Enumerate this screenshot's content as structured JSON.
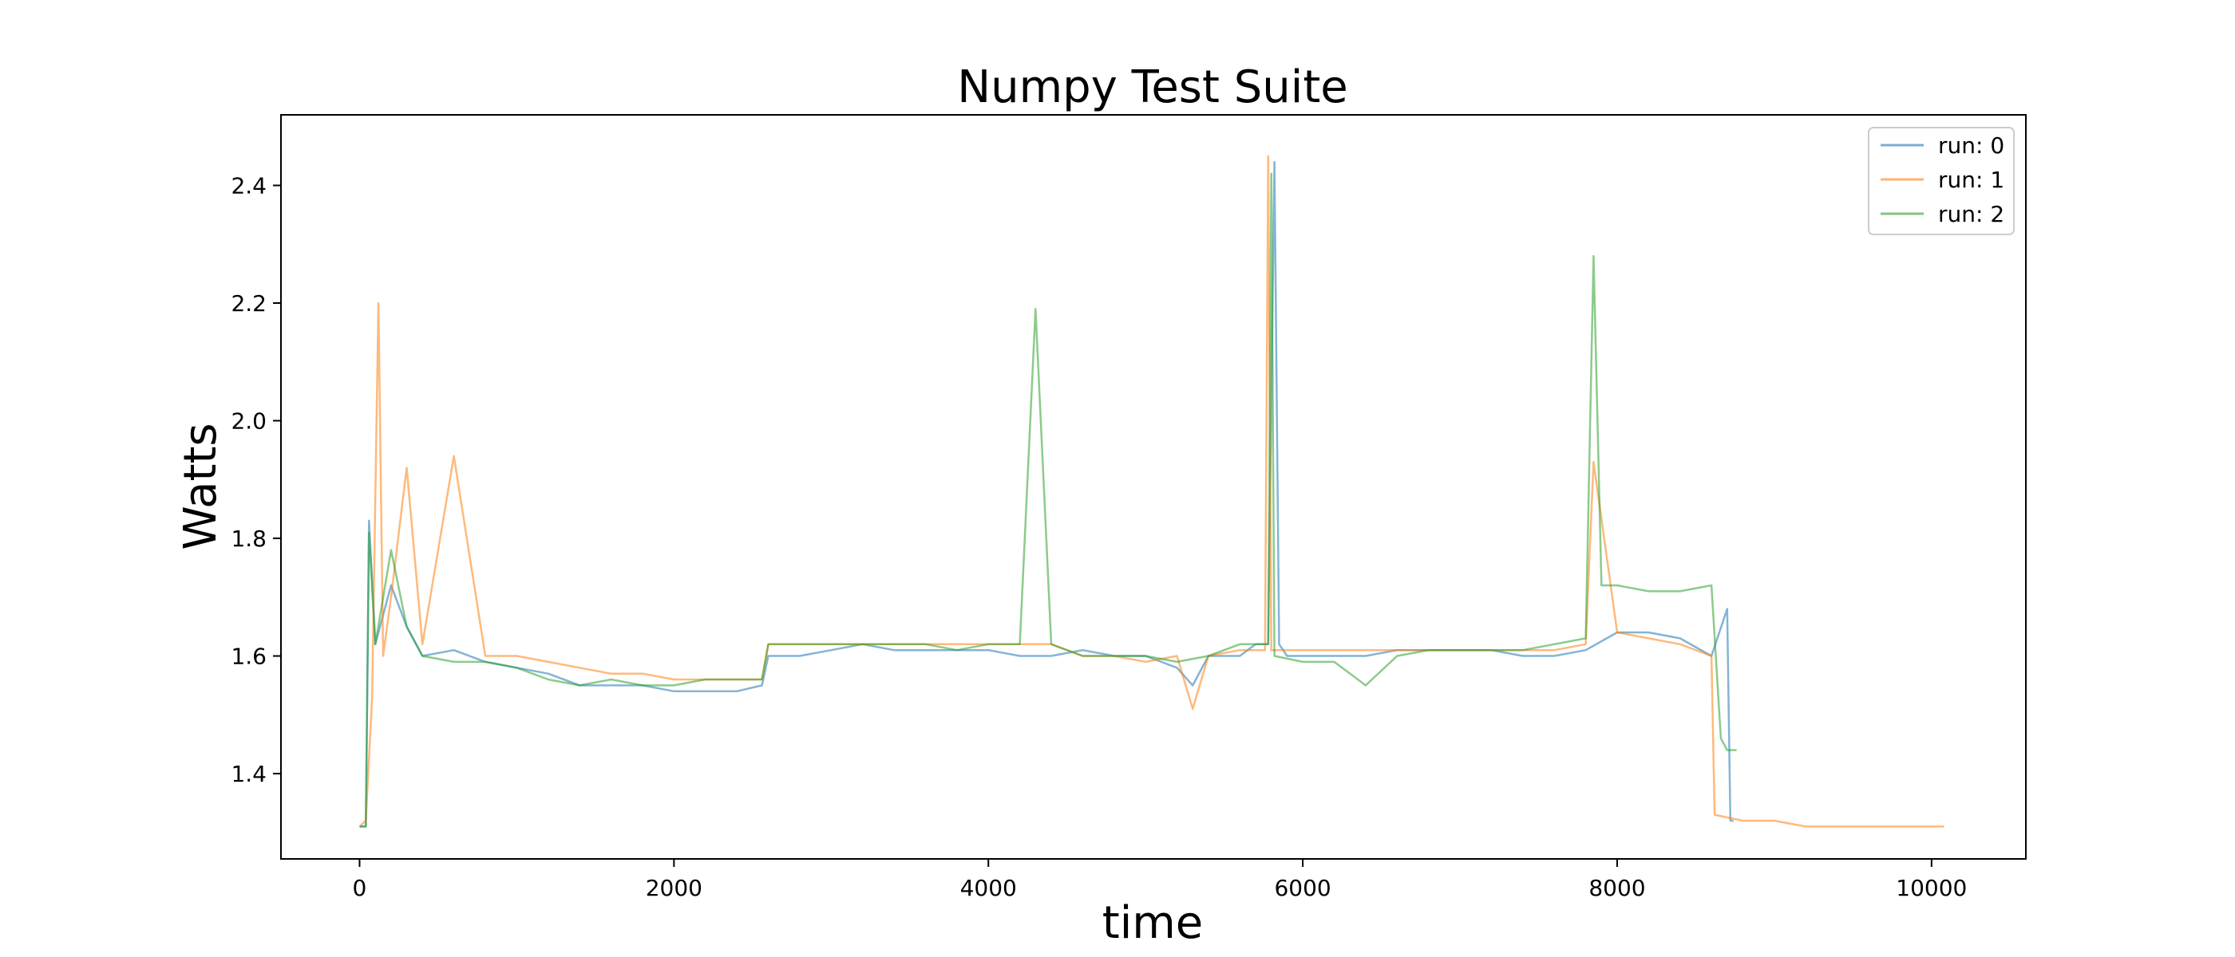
{
  "chart_data": {
    "type": "line",
    "title": "Numpy Test Suite",
    "xlabel": "time",
    "ylabel": "Watts",
    "xlim": [
      -500,
      10600
    ],
    "ylim": [
      1.255,
      2.52
    ],
    "xticks": [
      0,
      2000,
      4000,
      6000,
      8000,
      10000
    ],
    "yticks": [
      1.4,
      1.6,
      1.8,
      2.0,
      2.2,
      2.4
    ],
    "xtick_labels": [
      "0",
      "2000",
      "4000",
      "6000",
      "8000",
      "10000"
    ],
    "ytick_labels": [
      "1.4",
      "1.6",
      "1.8",
      "2.0",
      "2.2",
      "2.4"
    ],
    "legend_position": "top-right",
    "grid": false,
    "series": [
      {
        "name": "run: 0",
        "color": "#1f77b4",
        "x": [
          0,
          40,
          60,
          100,
          200,
          300,
          400,
          600,
          800,
          1000,
          1200,
          1400,
          1600,
          1800,
          2000,
          2200,
          2400,
          2560,
          2600,
          2800,
          3000,
          3200,
          3400,
          3600,
          3800,
          4000,
          4200,
          4400,
          4600,
          4800,
          5000,
          5200,
          5300,
          5400,
          5600,
          5700,
          5780,
          5820,
          5850,
          5900,
          6000,
          6200,
          6400,
          6600,
          6800,
          7000,
          7200,
          7400,
          7600,
          7800,
          8000,
          8200,
          8400,
          8600,
          8700,
          8720,
          8740
        ],
        "y": [
          1.31,
          1.31,
          1.83,
          1.62,
          1.72,
          1.65,
          1.6,
          1.61,
          1.59,
          1.58,
          1.57,
          1.55,
          1.55,
          1.55,
          1.54,
          1.54,
          1.54,
          1.55,
          1.6,
          1.6,
          1.61,
          1.62,
          1.61,
          1.61,
          1.61,
          1.61,
          1.6,
          1.6,
          1.61,
          1.6,
          1.6,
          1.58,
          1.55,
          1.6,
          1.6,
          1.62,
          1.62,
          2.44,
          1.62,
          1.6,
          1.6,
          1.6,
          1.6,
          1.61,
          1.61,
          1.61,
          1.61,
          1.6,
          1.6,
          1.61,
          1.64,
          1.64,
          1.63,
          1.6,
          1.68,
          1.32,
          1.32
        ]
      },
      {
        "name": "run: 1",
        "color": "#ff7f0e",
        "x": [
          0,
          40,
          80,
          120,
          150,
          200,
          300,
          400,
          600,
          800,
          1000,
          1200,
          1400,
          1600,
          1800,
          2000,
          2200,
          2400,
          2560,
          2600,
          2800,
          3000,
          3200,
          3400,
          3600,
          3800,
          4000,
          4200,
          4400,
          4600,
          4800,
          5000,
          5200,
          5300,
          5400,
          5600,
          5760,
          5780,
          5800,
          6000,
          6200,
          6400,
          6600,
          6800,
          7000,
          7200,
          7400,
          7600,
          7800,
          7850,
          8000,
          8200,
          8400,
          8600,
          8620,
          8800,
          9000,
          9200,
          9400,
          9600,
          9800,
          10000,
          10080
        ],
        "y": [
          1.31,
          1.32,
          1.53,
          2.2,
          1.6,
          1.7,
          1.92,
          1.62,
          1.94,
          1.6,
          1.6,
          1.59,
          1.58,
          1.57,
          1.57,
          1.56,
          1.56,
          1.56,
          1.56,
          1.62,
          1.62,
          1.62,
          1.62,
          1.62,
          1.62,
          1.62,
          1.62,
          1.62,
          1.62,
          1.6,
          1.6,
          1.59,
          1.6,
          1.51,
          1.6,
          1.61,
          1.61,
          2.45,
          1.61,
          1.61,
          1.61,
          1.61,
          1.61,
          1.61,
          1.61,
          1.61,
          1.61,
          1.61,
          1.62,
          1.93,
          1.64,
          1.63,
          1.62,
          1.6,
          1.33,
          1.32,
          1.32,
          1.31,
          1.31,
          1.31,
          1.31,
          1.31,
          1.31
        ]
      },
      {
        "name": "run: 2",
        "color": "#2ca02c",
        "x": [
          0,
          40,
          60,
          100,
          200,
          300,
          400,
          600,
          800,
          1000,
          1200,
          1400,
          1600,
          1800,
          2000,
          2200,
          2400,
          2560,
          2600,
          2800,
          3000,
          3200,
          3400,
          3600,
          3800,
          4000,
          4200,
          4300,
          4400,
          4600,
          4800,
          5000,
          5200,
          5400,
          5600,
          5780,
          5800,
          5820,
          6000,
          6200,
          6400,
          6600,
          6800,
          7000,
          7200,
          7400,
          7600,
          7800,
          7850,
          7900,
          8000,
          8200,
          8400,
          8600,
          8660,
          8700,
          8760
        ],
        "y": [
          1.31,
          1.31,
          1.81,
          1.62,
          1.78,
          1.65,
          1.6,
          1.59,
          1.59,
          1.58,
          1.56,
          1.55,
          1.56,
          1.55,
          1.55,
          1.56,
          1.56,
          1.56,
          1.62,
          1.62,
          1.62,
          1.62,
          1.62,
          1.62,
          1.61,
          1.62,
          1.62,
          2.19,
          1.62,
          1.6,
          1.6,
          1.6,
          1.59,
          1.6,
          1.62,
          1.62,
          2.42,
          1.6,
          1.59,
          1.59,
          1.55,
          1.6,
          1.61,
          1.61,
          1.61,
          1.61,
          1.62,
          1.63,
          2.28,
          1.72,
          1.72,
          1.71,
          1.71,
          1.72,
          1.46,
          1.44,
          1.44
        ]
      }
    ]
  }
}
